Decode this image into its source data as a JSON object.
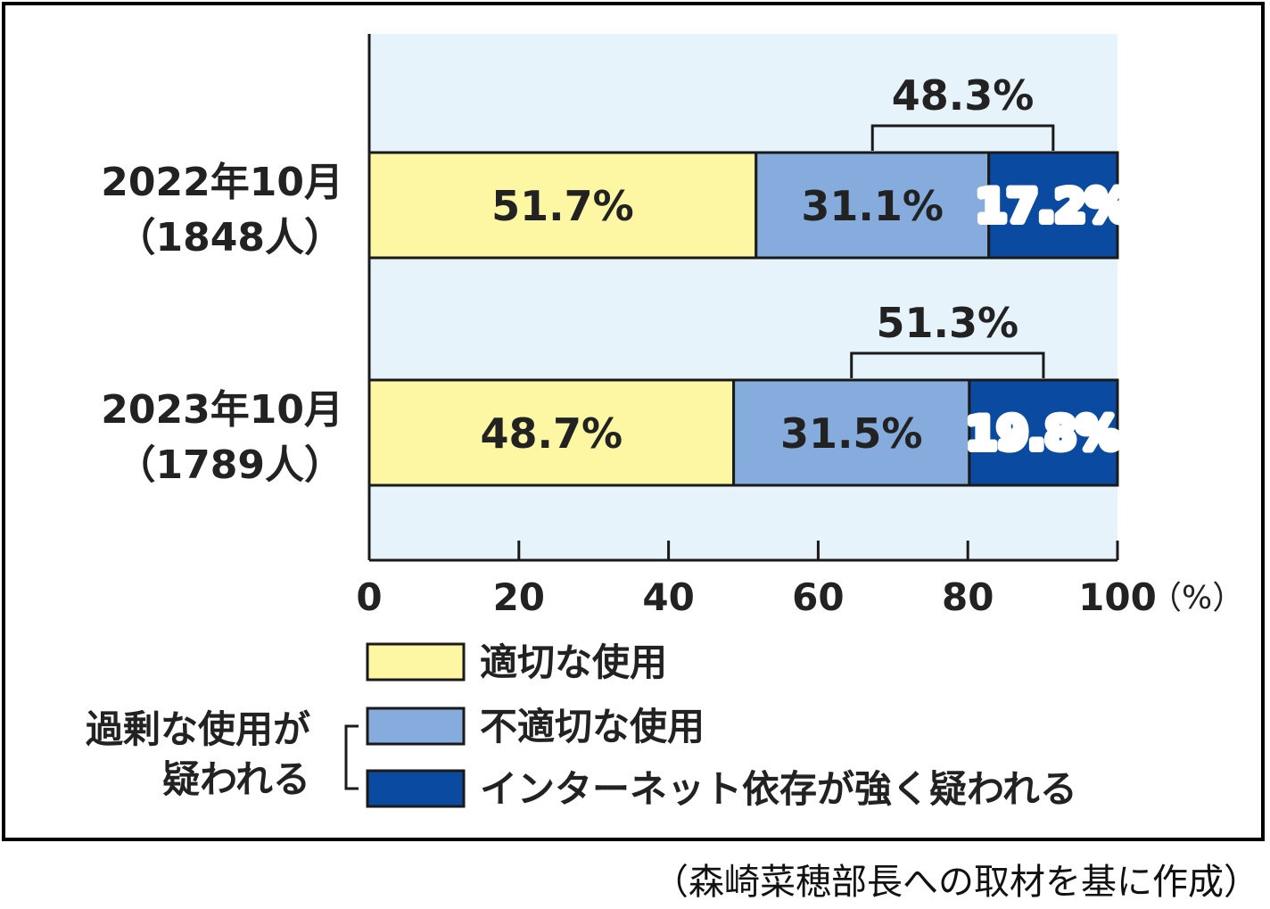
{
  "chart_data": {
    "type": "bar",
    "stacked": true,
    "orientation": "horizontal",
    "categories": [
      "2022年10月",
      "2023年10月"
    ],
    "category_sublabels": [
      "（1848人）",
      "（1789人）"
    ],
    "series": [
      {
        "name": "適切な使用",
        "values": [
          51.7,
          48.7
        ],
        "labels": [
          "51.7%",
          "48.7%"
        ],
        "color": "#fdf7a4",
        "text_color": "#222222"
      },
      {
        "name": "不適切な使用",
        "values": [
          31.1,
          31.5
        ],
        "labels": [
          "31.1%",
          "31.5%"
        ],
        "color": "#85acdc",
        "text_color": "#222222"
      },
      {
        "name": "インターネット依存が強く疑われる",
        "values": [
          17.2,
          19.8
        ],
        "labels": [
          "17.2%",
          "19.8%"
        ],
        "color": "#0a4aa0",
        "text_color": "#ffffff"
      }
    ],
    "bracket_labels": [
      "48.3%",
      "51.3%"
    ],
    "xlim": [
      0,
      100
    ],
    "xticks": [
      "0",
      "20",
      "40",
      "60",
      "80",
      "100"
    ],
    "x_unit": "（%）",
    "plot_background": "#e6f3fb",
    "legend_group_label": "過剰な使用が疑われる",
    "legend_position": "bottom"
  },
  "source_note": "（森崎菜穂部長への取材を基に作成）"
}
